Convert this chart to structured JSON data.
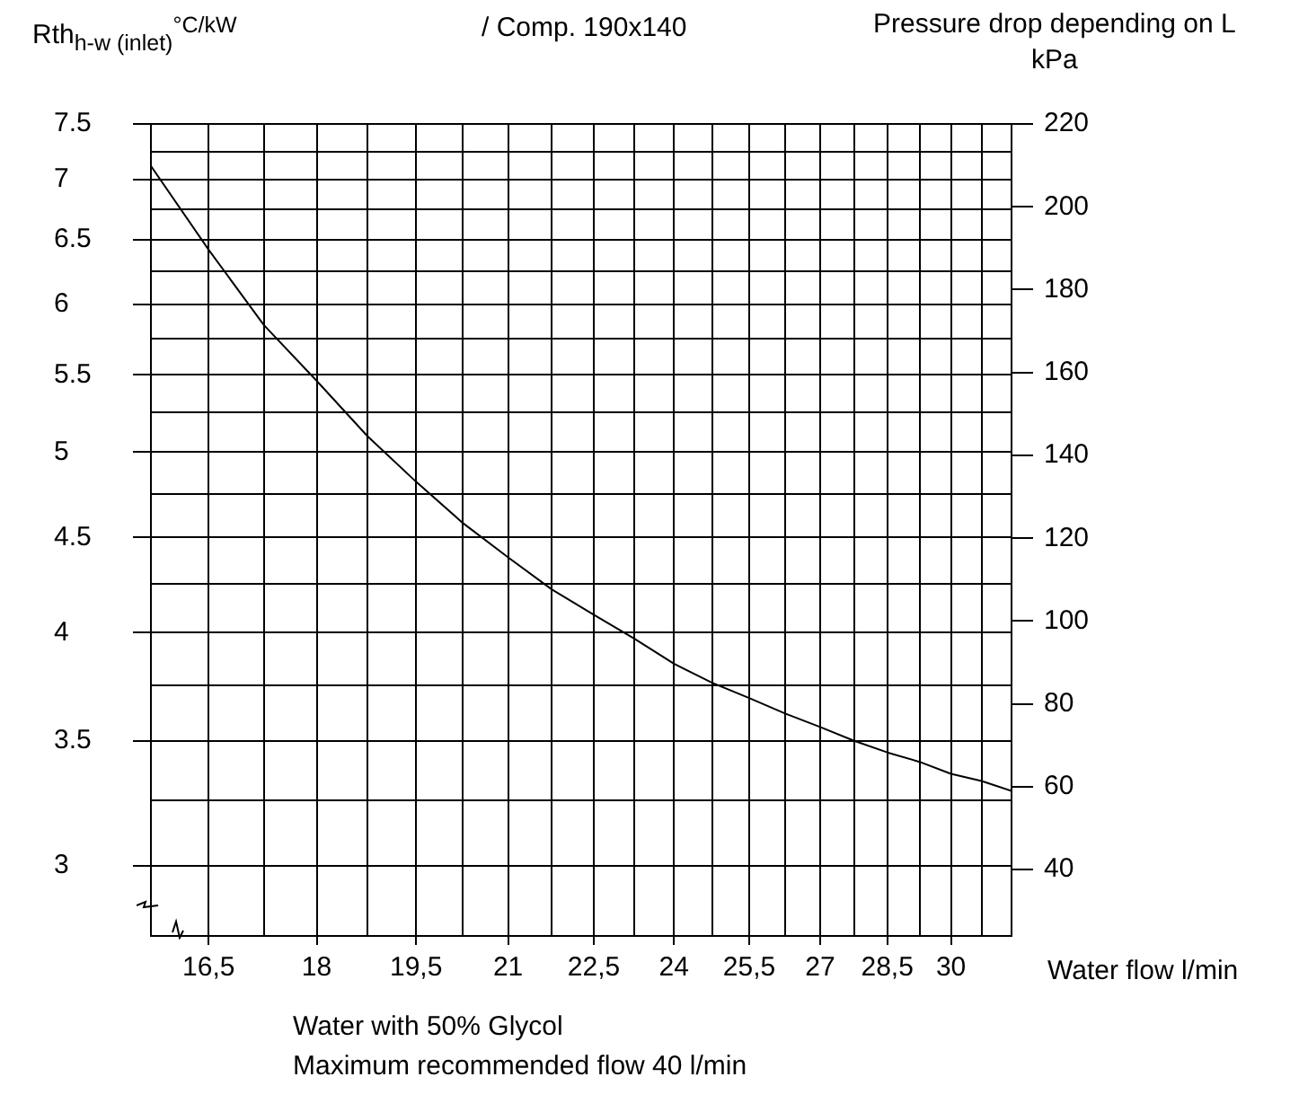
{
  "chart_data": {
    "type": "line",
    "title": "/ Comp. 190x140",
    "ylabel": "Rth$_{h-w (inlet)}$$^{°C/kW}$",
    "y2label": "Pressure drop depending on L\nkPa",
    "xlabel": "Water flow l/min",
    "annotations": [
      "Water with 50% Glycol",
      "Maximum recommended flow 40 l/min"
    ],
    "x": [
      15.75,
      16.5,
      17.25,
      18,
      18.75,
      19.5,
      20.25,
      21,
      21.75,
      22.5,
      23.25,
      24,
      24.75,
      25.5,
      26.25,
      27,
      27.75,
      28.5,
      29.25,
      30,
      30.75,
      31.5
    ],
    "series": [
      {
        "color": "#000000",
        "values": [
          7.12,
          6.42,
          5.85,
          5.46,
          5.1,
          4.82,
          4.58,
          4.39,
          4.22,
          4.09,
          3.97,
          3.85,
          3.76,
          3.69,
          3.62,
          3.56,
          3.5,
          3.45,
          3.41,
          3.36,
          3.33,
          3.29
        ]
      }
    ],
    "xlim": [
      15.75,
      31.5
    ],
    "xticks": [
      {
        "value": 15.75,
        "label": null
      },
      {
        "value": 16.5,
        "label": "16,5"
      },
      {
        "value": 17.25,
        "label": null
      },
      {
        "value": 18,
        "label": "18"
      },
      {
        "value": 18.75,
        "label": null
      },
      {
        "value": 19.5,
        "label": "19,5"
      },
      {
        "value": 20.25,
        "label": null
      },
      {
        "value": 21,
        "label": "21"
      },
      {
        "value": 21.75,
        "label": null
      },
      {
        "value": 22.5,
        "label": "22,5"
      },
      {
        "value": 23.25,
        "label": null
      },
      {
        "value": 24,
        "label": "24"
      },
      {
        "value": 24.75,
        "label": null
      },
      {
        "value": 25.5,
        "label": "25,5"
      },
      {
        "value": 26.25,
        "label": null
      },
      {
        "value": 27,
        "label": "27"
      },
      {
        "value": 27.75,
        "label": null
      },
      {
        "value": 28.5,
        "label": "28,5"
      },
      {
        "value": 29.25,
        "label": null
      },
      {
        "value": 30,
        "label": "30"
      },
      {
        "value": 30.75,
        "label": null
      },
      {
        "value": 31.5,
        "label": null
      }
    ],
    "ylim": [
      2.75,
      7.5
    ],
    "yticks": [
      3,
      {
        "value": 3.25,
        "label": null
      },
      3.5,
      {
        "value": 3.75,
        "label": null
      },
      4,
      {
        "value": 4.25,
        "label": null
      },
      4.5,
      {
        "value": 4.75,
        "label": null
      },
      5,
      {
        "value": 5.25,
        "label": null
      },
      5.5,
      {
        "value": 5.75,
        "label": null
      },
      6,
      {
        "value": 6.25,
        "label": null
      },
      6.5,
      {
        "value": 6.75,
        "label": null
      },
      7,
      {
        "value": 7.25,
        "label": null
      },
      7.5
    ],
    "y2lim": [
      24,
      220
    ],
    "y2ticks": [
      40,
      60,
      80,
      100,
      120,
      140,
      160,
      180,
      200,
      220
    ],
    "log": "xy",
    "grid": true,
    "legend": false,
    "marker": "none",
    "line_style": "solid"
  }
}
